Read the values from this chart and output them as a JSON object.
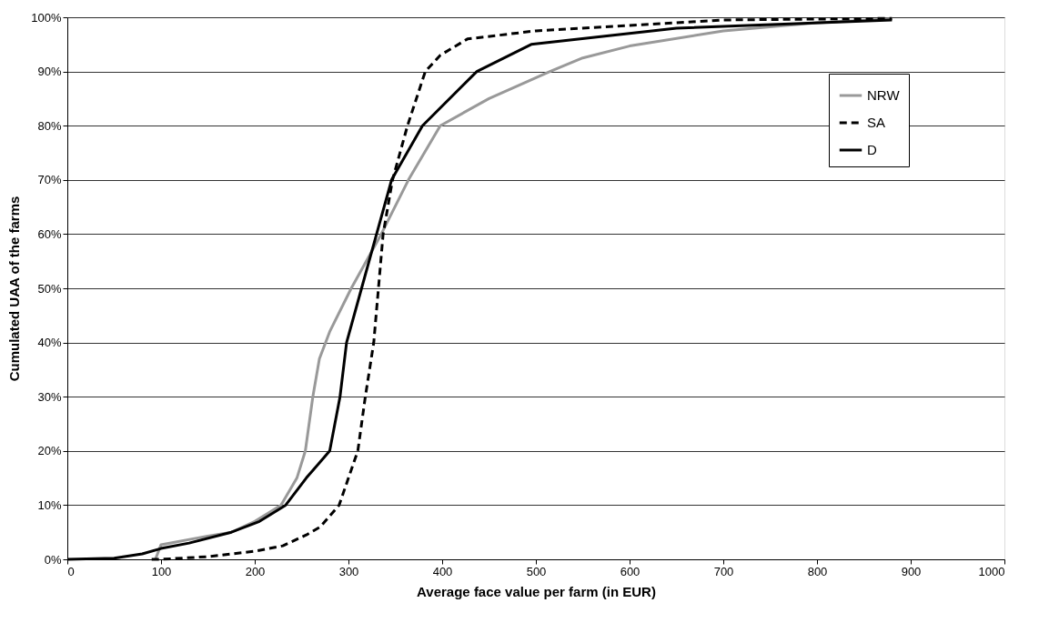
{
  "chart_data": {
    "type": "line",
    "xlabel": "Average face value per farm (in EUR)",
    "ylabel": "Cumulated UAA of the farms",
    "xlim": [
      0,
      1000
    ],
    "xticks": [
      0,
      100,
      200,
      300,
      400,
      500,
      600,
      700,
      800,
      900,
      1000
    ],
    "ylim": [
      0,
      100
    ],
    "yticks": [
      {
        "value": 0,
        "label": "0%"
      },
      {
        "value": 10,
        "label": "10%"
      },
      {
        "value": 20,
        "label": "20%"
      },
      {
        "value": 30,
        "label": "30%"
      },
      {
        "value": 40,
        "label": "40%"
      },
      {
        "value": 50,
        "label": "50%"
      },
      {
        "value": 60,
        "label": "60%"
      },
      {
        "value": 70,
        "label": "70%"
      },
      {
        "value": 80,
        "label": "80%"
      },
      {
        "value": 90,
        "label": "90%"
      },
      {
        "value": 100,
        "label": "100%"
      }
    ],
    "grid": "y",
    "legend": "top right",
    "marker": "none",
    "series": [
      {
        "name": "NRW",
        "color": "#999999",
        "line_style": "solid",
        "x": [
          94,
          100,
          150,
          175,
          200,
          228,
          245,
          254,
          262,
          269,
          280,
          303,
          335,
          364,
          398,
          450,
          515,
          550,
          600,
          700,
          800,
          880
        ],
        "values": [
          0,
          2.7,
          4.3,
          5,
          7,
          10,
          15,
          20,
          30,
          37,
          42,
          50,
          60,
          70,
          80,
          85,
          90,
          92.5,
          94.7,
          97.5,
          99,
          99.7
        ]
      },
      {
        "name": "SA",
        "color": "#000000",
        "line_style": "dashed",
        "x": [
          90,
          100,
          150,
          200,
          230,
          255,
          270,
          290,
          310,
          318,
          327,
          332,
          337,
          347,
          363,
          382,
          398,
          427,
          500,
          600,
          700,
          880
        ],
        "values": [
          0,
          0,
          0.5,
          1.5,
          2.5,
          4.5,
          6,
          10,
          20,
          30,
          40,
          50,
          60,
          70,
          80,
          90,
          93,
          96,
          97.5,
          98.5,
          99.5,
          99.8
        ]
      },
      {
        "name": "D",
        "color": "#000000",
        "line_style": "solid",
        "x": [
          0,
          50,
          80,
          100,
          130,
          175,
          205,
          233,
          255,
          280,
          291,
          298,
          314,
          330,
          346,
          379,
          437,
          495,
          650,
          880
        ],
        "values": [
          0,
          0.2,
          1,
          2,
          3,
          5,
          7,
          10,
          15,
          20,
          30,
          40,
          50,
          60,
          70,
          80,
          90,
          95,
          98,
          99.5
        ]
      }
    ]
  }
}
